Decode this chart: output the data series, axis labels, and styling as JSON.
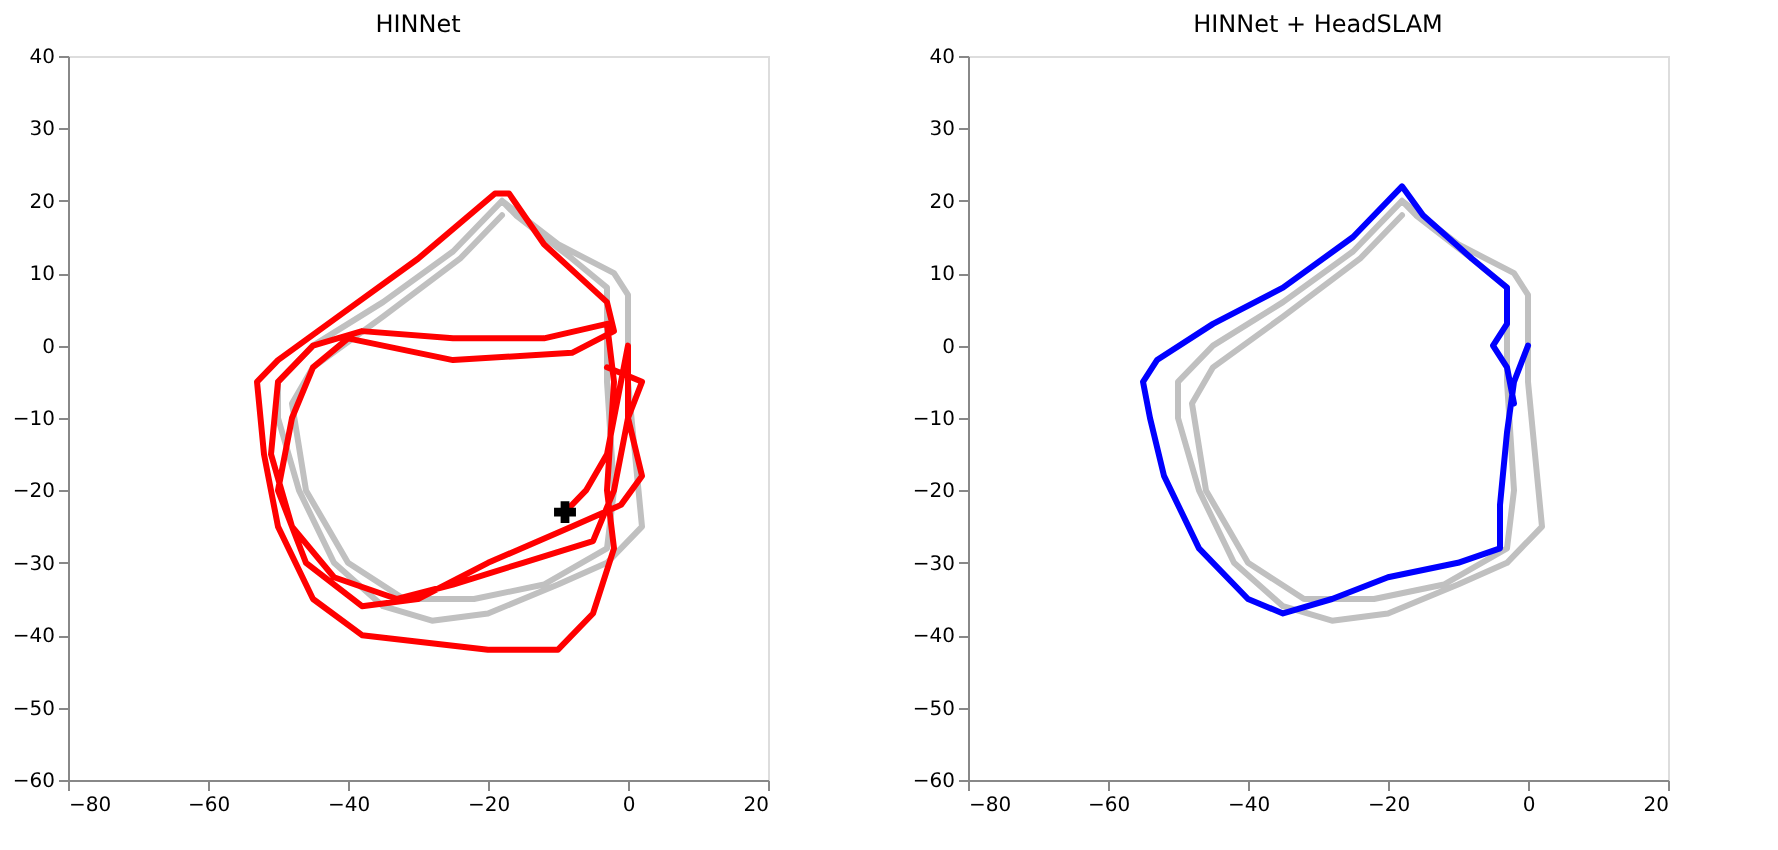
{
  "chart_data": [
    {
      "type": "line",
      "title": "HINNet",
      "xlim": [
        -80,
        20
      ],
      "ylim": [
        -60,
        40
      ],
      "xticks": [
        -80,
        -60,
        -40,
        -20,
        0,
        20
      ],
      "yticks": [
        -60,
        -50,
        -40,
        -30,
        -20,
        -10,
        0,
        10,
        20,
        30,
        40
      ],
      "grid": false,
      "marker": "none",
      "line_style": "solid",
      "series": [
        {
          "type": "line",
          "color": "#c0c0c0",
          "x": [
            -18,
            -10,
            -2,
            0,
            0,
            1,
            2,
            -3,
            -10,
            -20,
            -28,
            -35,
            -42,
            -47,
            -50,
            -50,
            -45,
            -35,
            -25,
            -18,
            -16,
            -8,
            -3,
            -3,
            -2,
            -3,
            -12,
            -22,
            -32,
            -40,
            -46,
            -48,
            -45,
            -35,
            -24,
            -18
          ],
          "values": [
            20,
            14,
            10,
            7,
            -5,
            -15,
            -25,
            -30,
            -33,
            -37,
            -38,
            -36,
            -30,
            -20,
            -10,
            -5,
            0,
            6,
            13,
            20,
            18,
            12,
            8,
            -5,
            -20,
            -28,
            -33,
            -35,
            -35,
            -30,
            -20,
            -8,
            -3,
            4,
            12,
            18
          ]
        },
        {
          "color": "#ff0000",
          "x": [
            -9,
            -6,
            -3,
            -1,
            0,
            0,
            -2,
            -5,
            -15,
            -25,
            -33,
            -42,
            -48,
            -51,
            -50,
            -45,
            -38,
            -25,
            -12,
            -3,
            -2,
            -3,
            -2,
            -5,
            -10,
            -20,
            -38,
            -45,
            -50,
            -52,
            -53,
            -50,
            -40,
            -30,
            -19,
            -17,
            -12,
            -3,
            -2,
            -8,
            -25,
            -40,
            -45,
            -48,
            -50,
            -46,
            -38,
            -30,
            -20,
            -8,
            -1,
            2,
            0,
            2,
            -3
          ],
          "values": [
            -23,
            -20,
            -15,
            -5,
            0,
            -10,
            -20,
            -27,
            -30,
            -33,
            -35,
            -32,
            -25,
            -15,
            -5,
            0,
            2,
            1,
            1,
            3,
            -5,
            -20,
            -28,
            -37,
            -42,
            -42,
            -40,
            -35,
            -25,
            -15,
            -5,
            -2,
            5,
            12,
            21,
            21,
            14,
            6,
            2,
            -1,
            -2,
            1,
            -3,
            -10,
            -20,
            -30,
            -36,
            -35,
            -30,
            -25,
            -22,
            -18,
            -10,
            -5,
            -3
          ]
        },
        {
          "type": "scatter",
          "marker": "cross",
          "color": "#000000",
          "x": [
            -9
          ],
          "values": [
            -23
          ]
        }
      ]
    },
    {
      "type": "line",
      "title": "HINNet + HeadSLAM",
      "xlim": [
        -80,
        20
      ],
      "ylim": [
        -60,
        40
      ],
      "xticks": [
        -80,
        -60,
        -40,
        -20,
        0,
        20
      ],
      "yticks": [
        -60,
        -50,
        -40,
        -30,
        -20,
        -10,
        0,
        10,
        20,
        30,
        40
      ],
      "grid": false,
      "marker": "none",
      "line_style": "solid",
      "series": [
        {
          "type": "line",
          "color": "#c0c0c0",
          "x": [
            -18,
            -10,
            -2,
            0,
            0,
            1,
            2,
            -3,
            -10,
            -20,
            -28,
            -35,
            -42,
            -47,
            -50,
            -50,
            -45,
            -35,
            -25,
            -18,
            -16,
            -8,
            -3,
            -3,
            -2,
            -3,
            -12,
            -22,
            -32,
            -40,
            -46,
            -48,
            -45,
            -35,
            -24,
            -18
          ],
          "values": [
            20,
            14,
            10,
            7,
            -5,
            -15,
            -25,
            -30,
            -33,
            -37,
            -38,
            -36,
            -30,
            -20,
            -10,
            -5,
            0,
            6,
            13,
            20,
            18,
            12,
            8,
            -5,
            -20,
            -28,
            -33,
            -35,
            -35,
            -30,
            -20,
            -8,
            -3,
            4,
            12,
            18
          ]
        },
        {
          "color": "#0000ff",
          "x": [
            0,
            -2,
            -3,
            -4,
            -4,
            -10,
            -20,
            -28,
            -35,
            -40,
            -47,
            -52,
            -54,
            -55,
            -53,
            -45,
            -35,
            -25,
            -18,
            -15,
            -8,
            -3,
            -3,
            -5,
            -3,
            -2
          ],
          "values": [
            0,
            -5,
            -12,
            -22,
            -28,
            -30,
            -32,
            -35,
            -37,
            -35,
            -28,
            -18,
            -10,
            -5,
            -2,
            3,
            8,
            15,
            22,
            18,
            12,
            8,
            3,
            0,
            -3,
            -8
          ]
        }
      ]
    }
  ]
}
